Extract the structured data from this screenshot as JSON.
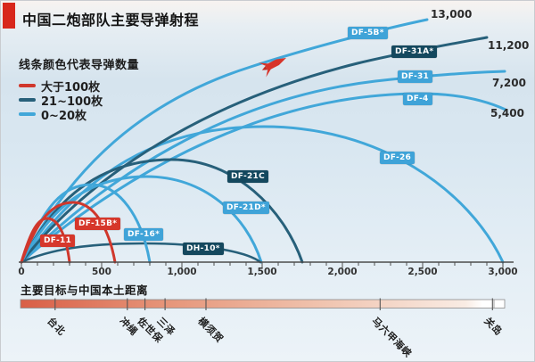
{
  "title": "中国二炮部队主要导弹射程",
  "colors": {
    "red": "#d0372c",
    "dark": "#27607a",
    "light": "#41a7d9",
    "accent_block": "#d8271c",
    "axis": "#4d4d4d",
    "bar_left": "#d95f47",
    "bar_right": "#ffffff"
  },
  "legend": {
    "title": "线条颜色代表导弹数量",
    "items": [
      {
        "label": "大于100枚",
        "category": "red"
      },
      {
        "label": "21~100枚",
        "category": "dark"
      },
      {
        "label": "0~20枚",
        "category": "light"
      }
    ]
  },
  "missiles": [
    {
      "name": "DF-11",
      "category": "red",
      "range_km": 300
    },
    {
      "name": "DF-15B*",
      "category": "red",
      "range_km": 600
    },
    {
      "name": "DF-16*",
      "category": "light",
      "range_km": 800
    },
    {
      "name": "DH-10*",
      "category": "dark",
      "range_km": 1500
    },
    {
      "name": "DF-21D*",
      "category": "light",
      "range_km": 1500
    },
    {
      "name": "DF-21C",
      "category": "dark",
      "range_km": 1750
    },
    {
      "name": "DF-26",
      "category": "light",
      "range_km": 3000
    },
    {
      "name": "DF-4",
      "category": "light",
      "range_km": 5400,
      "range_label": "5,400"
    },
    {
      "name": "DF-31",
      "category": "light",
      "range_km": 7200,
      "range_label": "7,200"
    },
    {
      "name": "DF-31A*",
      "category": "dark",
      "range_km": 11200,
      "range_label": "11,200"
    },
    {
      "name": "DF-5B*",
      "category": "light",
      "range_km": 13000,
      "range_label": "13,000"
    }
  ],
  "axis": {
    "min": 0,
    "max": 3000,
    "major_step": 500,
    "minor_step": 100,
    "tick_labels": [
      "0",
      "500",
      "1,000",
      "1,500",
      "2,000",
      "2,500",
      "3,000"
    ]
  },
  "bottom": {
    "label": "主要目标与中国本土距离",
    "cities": [
      {
        "name": "台北",
        "km": 210
      },
      {
        "name": "冲绳",
        "km": 660
      },
      {
        "name": "佐世保",
        "km": 770
      },
      {
        "name": "三泽",
        "km": 895
      },
      {
        "name": "横须贺",
        "km": 1150
      },
      {
        "name": "马六甲海峡",
        "km": 2235
      },
      {
        "name": "关岛",
        "km": 2935
      }
    ]
  },
  "chart_data": {
    "type": "line",
    "title": "中国二炮部队主要导弹射程",
    "xlabel": "",
    "ylabel": "",
    "x_axis": {
      "range_km": [
        0,
        3000
      ],
      "ticks": [
        0,
        500,
        1000,
        1500,
        2000,
        2500,
        3000
      ],
      "minor_tick_step": 100
    },
    "legend": {
      "title": "线条颜色代表导弹数量",
      "entries": [
        "大于100枚",
        "21~100枚",
        "0~20枚"
      ],
      "position": "top-left"
    },
    "series": [
      {
        "name": "DF-11",
        "quantity_class": "大于100枚",
        "range_km": 300,
        "shape": "ballistic-arc"
      },
      {
        "name": "DF-15B*",
        "quantity_class": "大于100枚",
        "range_km": 600,
        "shape": "ballistic-arc"
      },
      {
        "name": "DF-16*",
        "quantity_class": "0~20枚",
        "range_km": 800,
        "shape": "ballistic-arc"
      },
      {
        "name": "DH-10*",
        "quantity_class": "21~100枚",
        "range_km": 1500,
        "shape": "low-cruise-arc"
      },
      {
        "name": "DF-21D*",
        "quantity_class": "0~20枚",
        "range_km": 1500,
        "shape": "ballistic-arc"
      },
      {
        "name": "DF-21C",
        "quantity_class": "21~100枚",
        "range_km": 1750,
        "shape": "ballistic-arc"
      },
      {
        "name": "DF-26",
        "quantity_class": "0~20枚",
        "range_km": 3000,
        "shape": "ballistic-arc"
      },
      {
        "name": "DF-4",
        "quantity_class": "0~20枚",
        "range_km": 5400,
        "shape": "open-arc-exits-right",
        "data_label": "5,400"
      },
      {
        "name": "DF-31",
        "quantity_class": "0~20枚",
        "range_km": 7200,
        "shape": "open-arc-exits-right",
        "data_label": "7,200"
      },
      {
        "name": "DF-31A*",
        "quantity_class": "21~100枚",
        "range_km": 11200,
        "shape": "open-arc-exits-right",
        "data_label": "11,200"
      },
      {
        "name": "DF-5B*",
        "quantity_class": "0~20枚",
        "range_km": 13000,
        "shape": "open-arc-exits-right",
        "data_label": "13,000"
      }
    ],
    "annotations": [
      {
        "type": "rocket-icon",
        "on_series": "DF-5B*",
        "approx_km": 1550
      }
    ],
    "targets_scale": {
      "label": "主要目标与中国本土距离",
      "style": "red-to-white gradient bar",
      "targets": [
        {
          "name": "台北",
          "distance_km": 210
        },
        {
          "name": "冲绳",
          "distance_km": 660
        },
        {
          "name": "佐世保",
          "distance_km": 770
        },
        {
          "name": "三泽",
          "distance_km": 895
        },
        {
          "name": "横须贺",
          "distance_km": 1150
        },
        {
          "name": "马六甲海峡",
          "distance_km": 2235
        },
        {
          "name": "关岛",
          "distance_km": 2935
        }
      ]
    }
  }
}
